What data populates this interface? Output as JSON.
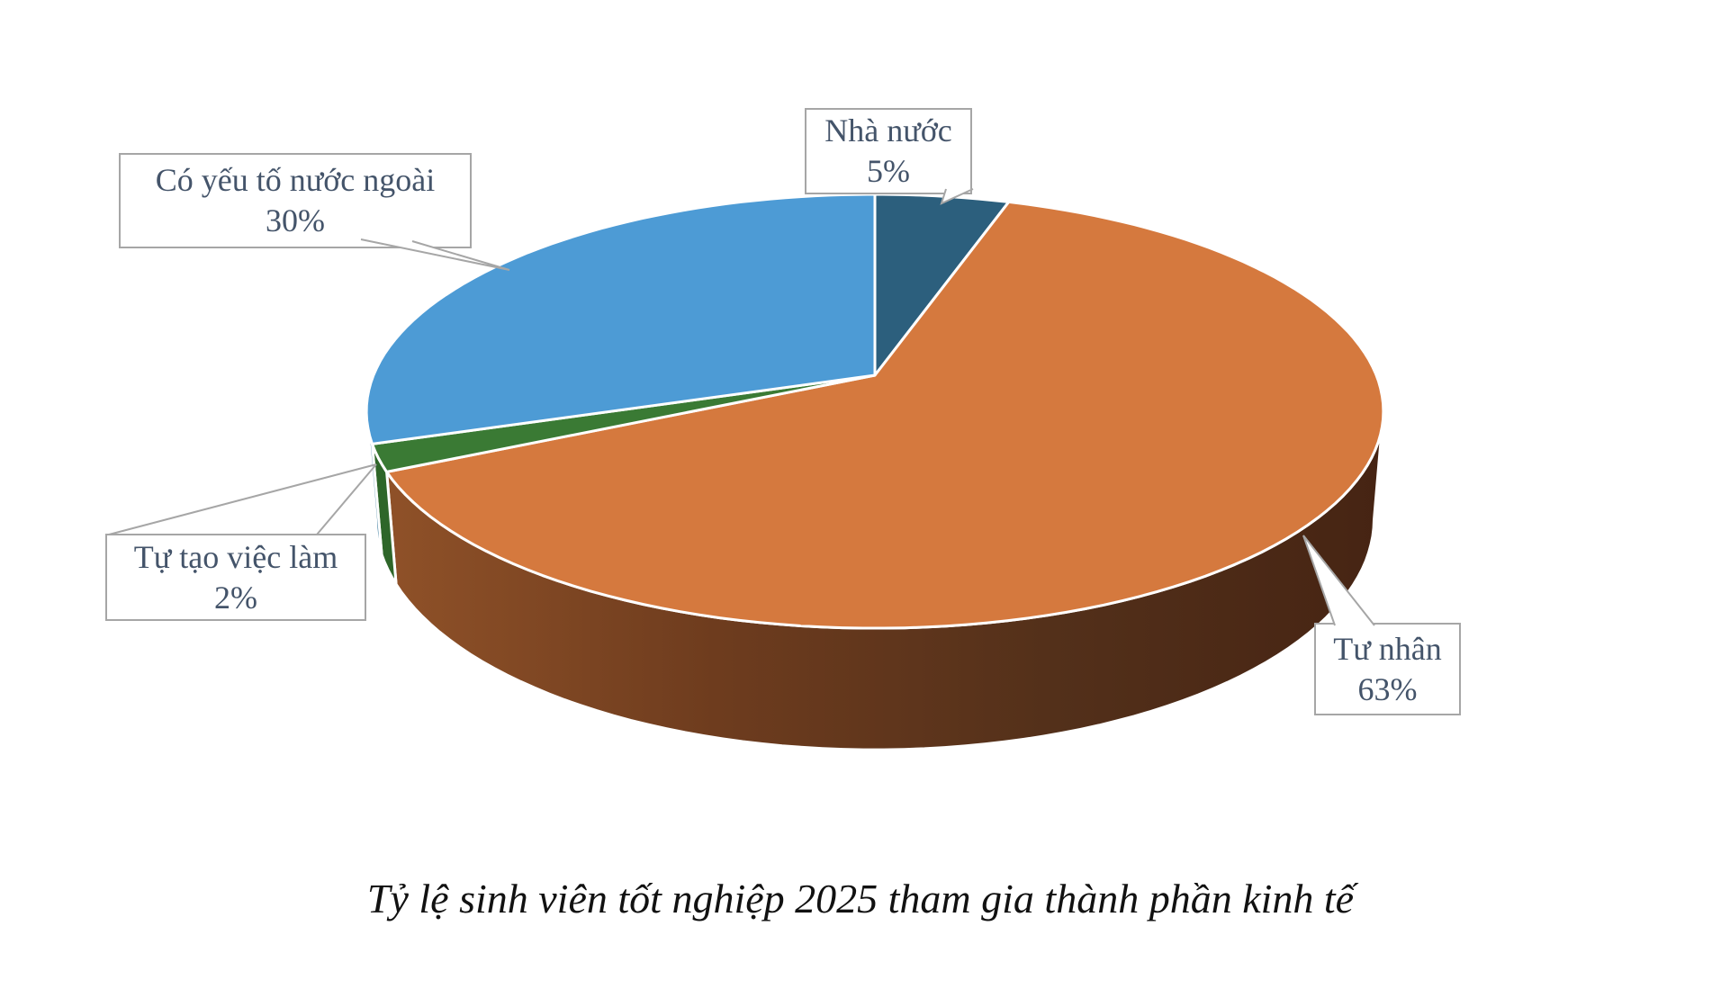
{
  "chart_data": {
    "type": "pie",
    "effect": "3d-perspective",
    "start_angle_deg": 0,
    "direction": "clockwise",
    "title": "Tỷ lệ sinh viên tốt nghiệp 2025 tham gia thành phần kinh tế",
    "categories": [
      "Nhà nước",
      "Tư nhân",
      "Tự tạo việc làm",
      "Có yếu tố nước ngoài"
    ],
    "values": [
      5,
      63,
      2,
      30
    ],
    "legend_position": "none",
    "labels_style": "callout-boxes",
    "slices": [
      {
        "label": "Nhà nước",
        "pct": 5,
        "pct_label": "5%",
        "color": "#2C5F7D",
        "side_color": "#35708F"
      },
      {
        "label": "Tư nhân",
        "pct": 63,
        "pct_label": "63%",
        "color": "#D5793E",
        "side_color": "#6E3C1E",
        "side_gradient": [
          "#8F5128",
          "#6E3C1E",
          "#53301A",
          "#462413"
        ]
      },
      {
        "label": "Tự tạo việc làm",
        "pct": 2,
        "pct_label": "2%",
        "color": "#3A7A34",
        "side_color": "#2E6629"
      },
      {
        "label": "Có yếu tố nước ngoài",
        "pct": 30,
        "pct_label": "30%",
        "color": "#4D9BD5",
        "side_color": "#3A7A9E"
      }
    ]
  },
  "theme": {
    "background": "#FFFFFF",
    "callout_border": "#A6A6A6",
    "callout_text": "#44546A",
    "caption_color": "#111111",
    "slice_separator": "#FFFFFF"
  }
}
